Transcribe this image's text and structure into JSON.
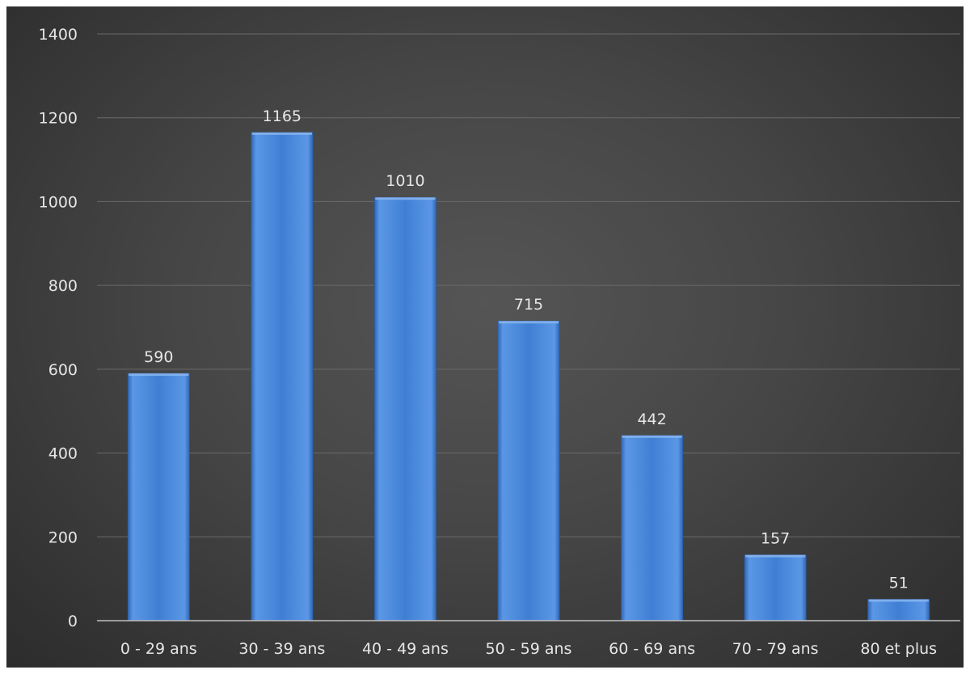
{
  "chart_data": {
    "type": "bar",
    "categories": [
      "0 - 29 ans",
      "30 - 39 ans",
      "40 - 49 ans",
      "50 - 59 ans",
      "60 - 69 ans",
      "70 - 79 ans",
      "80 et plus"
    ],
    "values": [
      590,
      1165,
      1010,
      715,
      442,
      157,
      51
    ],
    "ylim": [
      0,
      1400
    ],
    "yticks": [
      0,
      200,
      400,
      600,
      800,
      1000,
      1200,
      1400
    ],
    "title": "",
    "xlabel": "",
    "ylabel": "",
    "grid": true,
    "legend": "none",
    "data_labels": true
  },
  "colors": {
    "bar_light": "#5b97e6",
    "bar_mid": "#3f7fd3",
    "bar_dark": "#2f66b3",
    "grid": "#6a6a6a",
    "axis": "#bfbfbf"
  }
}
